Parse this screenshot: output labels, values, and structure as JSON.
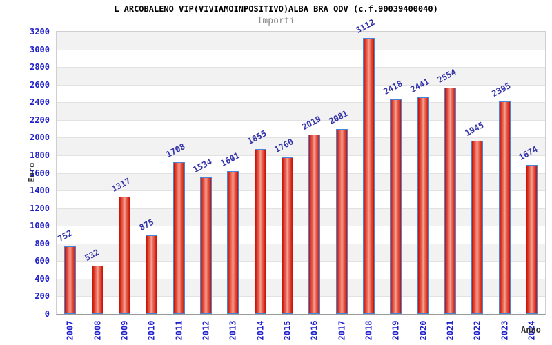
{
  "chart_data": {
    "type": "bar",
    "title": "L ARCOBALENO VIP(VIVIAMOINPOSITIVO)ALBA BRA ODV (c.f.90039400040)",
    "subtitle": "Importi",
    "xlabel": "Anno",
    "ylabel": "Euro",
    "categories": [
      "2007",
      "2008",
      "2009",
      "2010",
      "2011",
      "2012",
      "2013",
      "2014",
      "2015",
      "2016",
      "2017",
      "2018",
      "2019",
      "2020",
      "2021",
      "2022",
      "2023",
      "2024"
    ],
    "values": [
      752,
      532,
      1317,
      875,
      1708,
      1534,
      1601,
      1855,
      1760,
      2019,
      2081,
      3112,
      2418,
      2441,
      2554,
      1945,
      2395,
      1674
    ],
    "ylim": [
      0,
      3200
    ],
    "ytick_step": 200,
    "grid": true,
    "legend": "none",
    "colors": {
      "bar_edge": "#c80e00",
      "bar_mid": "#ea6b5a",
      "bar_center": "#f5a295",
      "bar_border": "#4a86d8",
      "axis_tick_label": "#2020cc",
      "value_label": "#3434aa",
      "band_gray": "#f2f2f2",
      "gridline": "#e2e2e2",
      "title": "#000000",
      "subtitle": "#8a8a8a",
      "axis_title": "#333333"
    }
  }
}
